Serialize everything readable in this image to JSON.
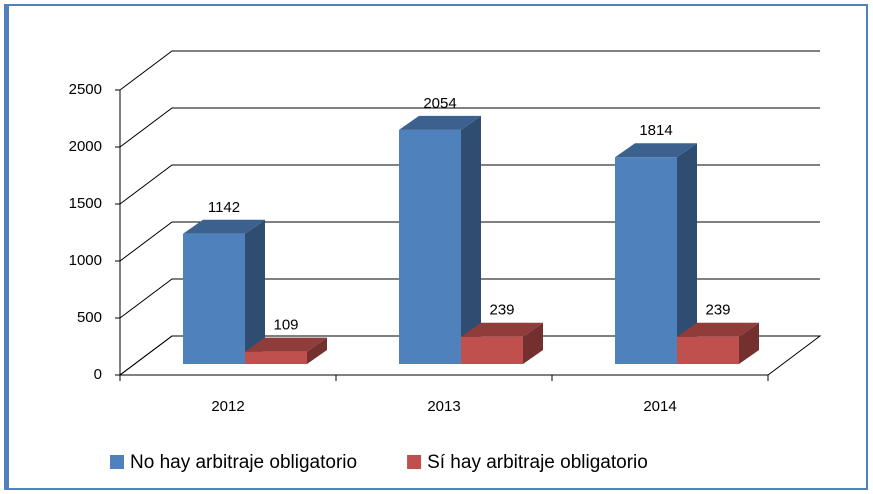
{
  "chart_data": {
    "type": "bar3d",
    "categories": [
      "2012",
      "2013",
      "2014"
    ],
    "series": [
      {
        "name": "No hay arbitraje obligatorio",
        "color": "#4f81bd",
        "values": [
          1142,
          2054,
          1814
        ]
      },
      {
        "name": "Sí hay arbitraje obligatorio",
        "color": "#c0504d",
        "values": [
          109,
          239,
          239
        ]
      }
    ],
    "ylim": [
      0,
      2500
    ],
    "yticks": [
      0,
      500,
      1000,
      1500,
      2000,
      2500
    ],
    "grid": true,
    "legend": "bottom"
  }
}
